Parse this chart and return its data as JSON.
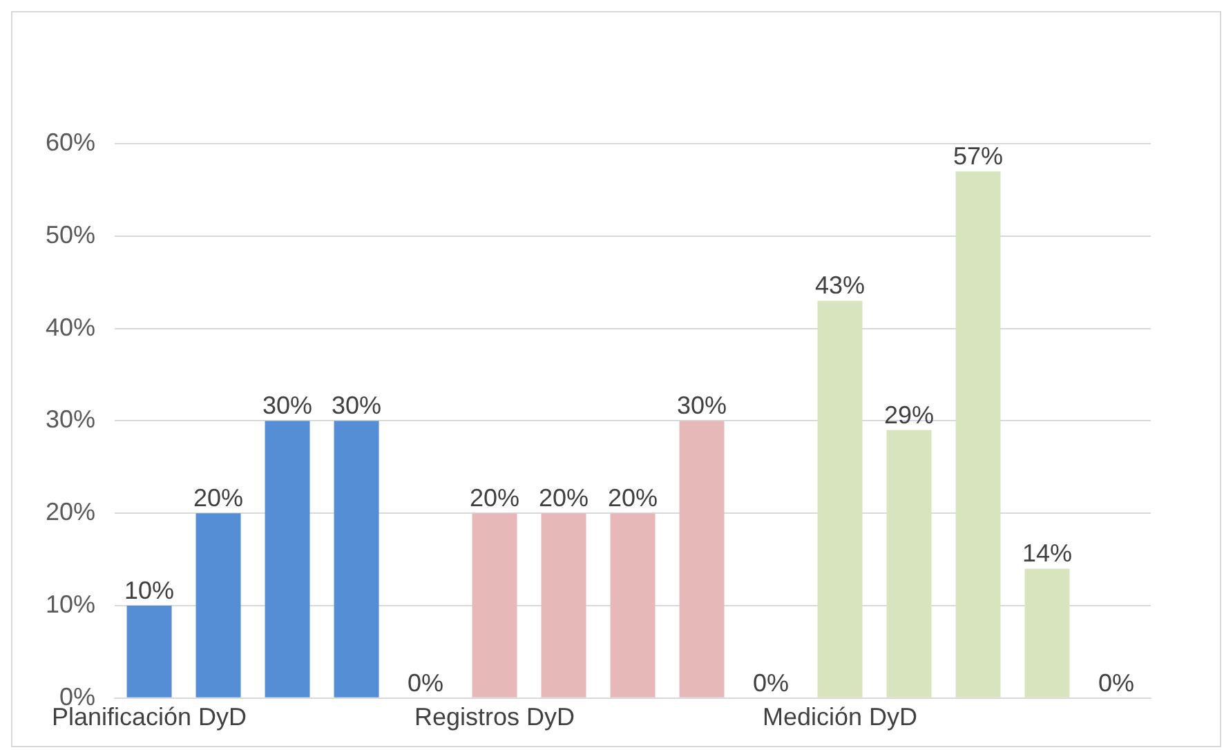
{
  "chart_data": {
    "type": "bar",
    "categories": [
      "Planificación DyD",
      null,
      null,
      null,
      null,
      "Registros DyD",
      null,
      null,
      null,
      null,
      "Medición DyD",
      null,
      null,
      null,
      null
    ],
    "values": [
      10,
      20,
      30,
      30,
      0,
      20,
      20,
      20,
      30,
      0,
      43,
      29,
      57,
      14,
      0
    ],
    "value_labels": [
      "10%",
      "20%",
      "30%",
      "30%",
      "0%",
      "20%",
      "20%",
      "20%",
      "30%",
      "0%",
      "43%",
      "29%",
      "57%",
      "14%",
      "0%"
    ],
    "colors": [
      "#558ed5",
      "#558ed5",
      "#558ed5",
      "#558ed5",
      "#558ed5",
      "#e6b9b8",
      "#e6b9b8",
      "#e6b9b8",
      "#e6b9b8",
      "#e6b9b8",
      "#d7e4bd",
      "#d7e4bd",
      "#d7e4bd",
      "#d7e4bd",
      "#d7e4bd"
    ],
    "ylim": [
      0,
      60
    ],
    "yticks": [
      {
        "value": 0,
        "label": "0%"
      },
      {
        "value": 10,
        "label": "10%"
      },
      {
        "value": 20,
        "label": "20%"
      },
      {
        "value": 30,
        "label": "30%"
      },
      {
        "value": 40,
        "label": "40%"
      },
      {
        "value": 50,
        "label": "50%"
      },
      {
        "value": 60,
        "label": "60%"
      }
    ],
    "grid": "y"
  }
}
